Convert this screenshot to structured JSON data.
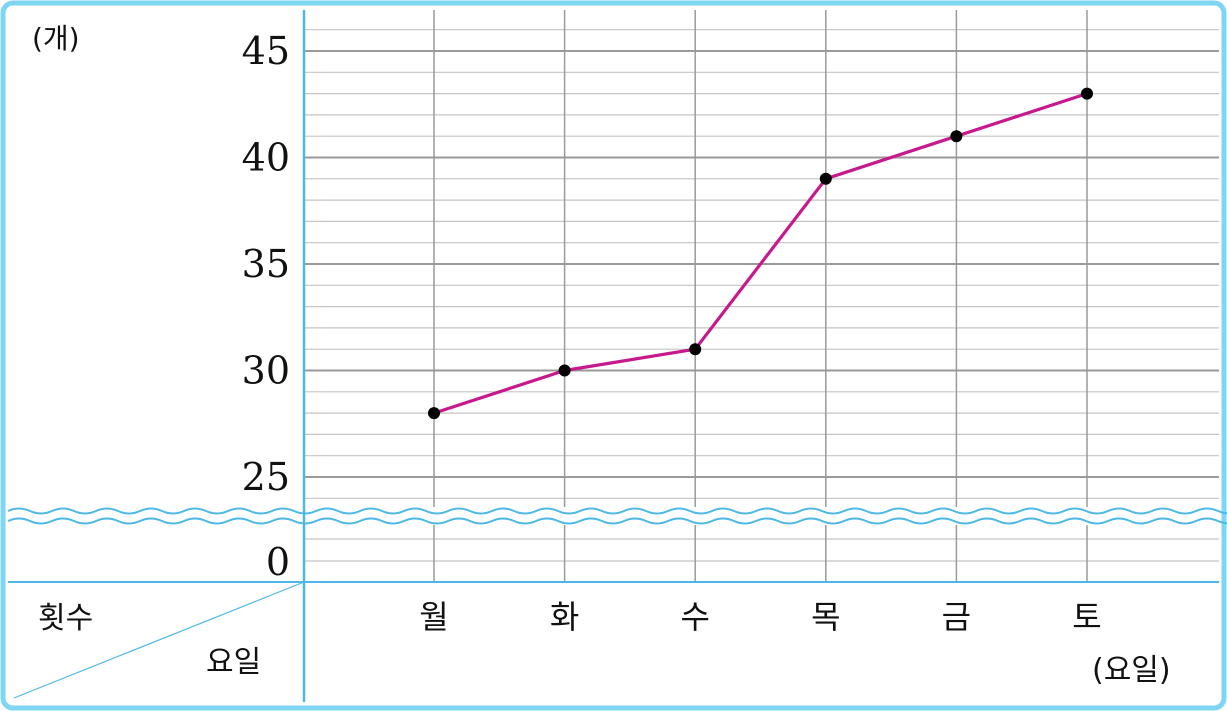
{
  "chart_data": {
    "type": "line",
    "y_unit_label": "(개)",
    "x_unit_label": "(요일)",
    "corner_top_label": "횟수",
    "corner_bottom_label": "요일",
    "categories": [
      "월",
      "화",
      "수",
      "목",
      "금",
      "토"
    ],
    "values": [
      28,
      30,
      31,
      39,
      41,
      43
    ],
    "yticks": [
      "45",
      "40",
      "35",
      "30",
      "25",
      "0"
    ],
    "ylim": [
      23,
      46
    ],
    "y_axis_break": true,
    "grid": true,
    "colors": {
      "line": "#c7198d",
      "marker": "#000000",
      "frame": "#6fd0f2",
      "axis": "#4db8e8",
      "grid_major": "#9a9a9a",
      "grid_minor": "#c4c4c4"
    }
  }
}
